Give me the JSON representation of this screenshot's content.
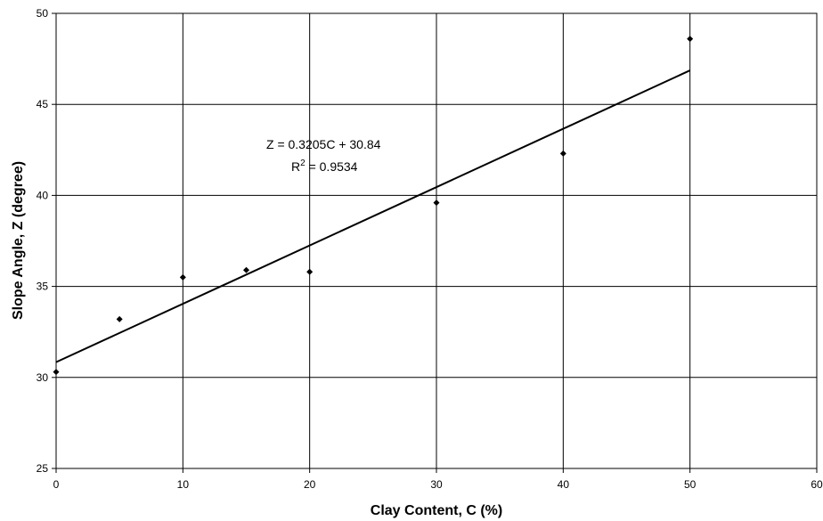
{
  "chart_data": {
    "type": "scatter",
    "xlabel": "Clay Content, C (%)",
    "ylabel": "Slope Angle, Z (degree)",
    "xlim": [
      0,
      60
    ],
    "ylim": [
      25,
      50
    ],
    "x_ticks": [
      0,
      10,
      20,
      30,
      40,
      50,
      60
    ],
    "y_ticks": [
      25,
      30,
      35,
      40,
      45,
      50
    ],
    "grid": true,
    "series": [
      {
        "points": [
          {
            "x": 0,
            "y": 30.3
          },
          {
            "x": 5,
            "y": 33.2
          },
          {
            "x": 10,
            "y": 35.5
          },
          {
            "x": 15,
            "y": 35.9
          },
          {
            "x": 20,
            "y": 35.8
          },
          {
            "x": 30,
            "y": 39.6
          },
          {
            "x": 40,
            "y": 42.3
          },
          {
            "x": 50,
            "y": 48.6
          }
        ]
      }
    ],
    "trendline": {
      "slope": 0.3205,
      "intercept": 30.84,
      "x_range": [
        0,
        50
      ],
      "equation": "Z = 0.3205C + 30.84",
      "r2_prefix": "R",
      "r2_superscript": "2",
      "r2_value": " = 0.9534"
    }
  }
}
